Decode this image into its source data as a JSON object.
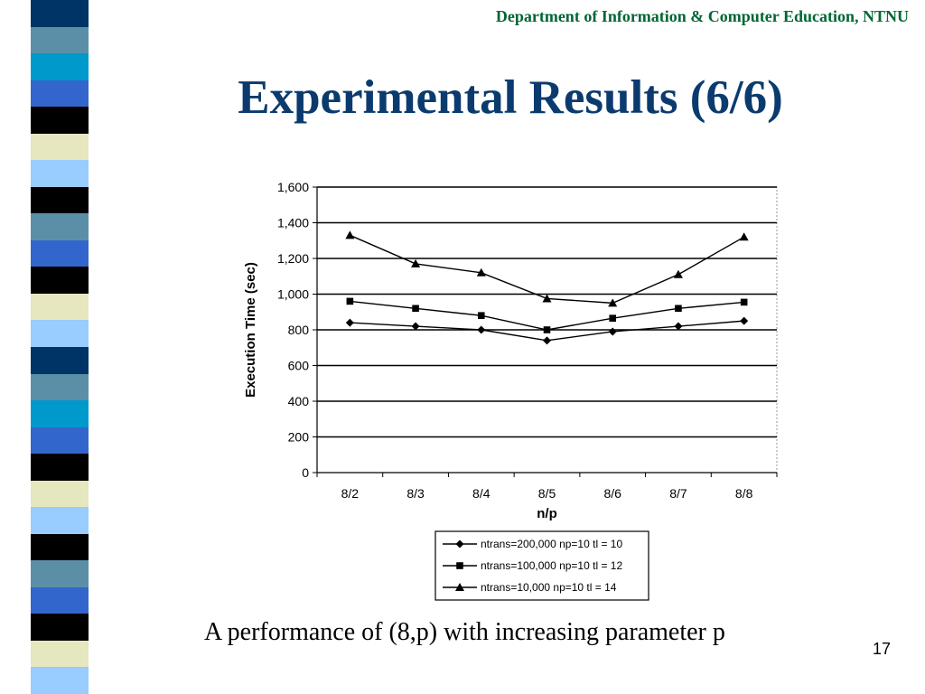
{
  "slide": {
    "header": "Department of Information & Computer Education, NTNU",
    "title": "Experimental Results (6/6)",
    "caption": "A performance of (8,p) with increasing parameter p",
    "page_number": "17"
  },
  "stripe_colors": [
    "#003366",
    "#5b8fa8",
    "#0099cc",
    "#3366cc",
    "#000000",
    "#e6e6bf",
    "#99ccff",
    "#000000",
    "#5b8fa8",
    "#3366cc",
    "#000000",
    "#e6e6bf",
    "#99ccff"
  ],
  "chart_data": {
    "type": "line",
    "categories": [
      "8/2",
      "8/3",
      "8/4",
      "8/5",
      "8/6",
      "8/7",
      "8/8"
    ],
    "xlabel": "n/p",
    "ylabel": "Execution Time (sec)",
    "ylim": [
      0,
      1600
    ],
    "yticks": [
      0,
      200,
      400,
      600,
      800,
      1000,
      1200,
      1400,
      1600
    ],
    "ytick_labels": [
      "0",
      "200",
      "400",
      "600",
      "800",
      "1,000",
      "1,200",
      "1,400",
      "1,600"
    ],
    "grid": true,
    "legend_position": "bottom",
    "series": [
      {
        "name": "ntrans=200,000 np=10 tl = 10",
        "marker": "diamond",
        "values": [
          840,
          820,
          800,
          740,
          790,
          820,
          850
        ]
      },
      {
        "name": "ntrans=100,000 np=10 tl = 12",
        "marker": "square",
        "values": [
          960,
          920,
          880,
          800,
          865,
          920,
          955
        ]
      },
      {
        "name": "ntrans=10,000   np=10 tl = 14",
        "marker": "triangle",
        "values": [
          1330,
          1170,
          1120,
          975,
          950,
          1110,
          1320
        ]
      }
    ]
  }
}
